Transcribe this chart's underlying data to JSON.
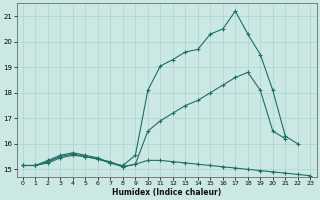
{
  "xlabel": "Humidex (Indice chaleur)",
  "bg_color": "#cce8e4",
  "grid_color": "#b0d8d2",
  "line_color": "#1e6e64",
  "xlim": [
    -0.5,
    23.5
  ],
  "ylim": [
    14.7,
    21.5
  ],
  "yticks": [
    15,
    16,
    17,
    18,
    19,
    20,
    21
  ],
  "xticks": [
    0,
    1,
    2,
    3,
    4,
    5,
    6,
    7,
    8,
    9,
    10,
    11,
    12,
    13,
    14,
    15,
    16,
    17,
    18,
    19,
    20,
    21,
    22,
    23
  ],
  "line1_x": [
    0,
    1,
    2,
    3,
    4,
    5,
    6,
    7,
    8,
    9,
    10,
    11,
    12,
    13,
    14,
    15,
    16,
    17,
    18,
    19,
    20,
    21,
    22
  ],
  "line1_y": [
    15.15,
    15.15,
    15.35,
    15.55,
    15.65,
    15.55,
    15.45,
    15.25,
    15.15,
    15.55,
    18.1,
    19.05,
    19.3,
    19.6,
    19.7,
    20.3,
    20.5,
    21.2,
    20.3,
    19.5,
    18.1,
    16.3,
    16.0
  ],
  "line2_x": [
    0,
    1,
    2,
    3,
    4,
    5,
    6,
    7,
    8,
    9,
    10,
    11,
    12,
    13,
    14,
    15,
    16,
    17,
    18,
    19,
    20,
    21,
    22
  ],
  "line2_y": [
    15.15,
    15.15,
    15.3,
    15.5,
    15.6,
    15.5,
    15.4,
    15.3,
    15.1,
    15.2,
    16.5,
    16.9,
    17.2,
    17.5,
    17.7,
    18.0,
    18.3,
    18.6,
    18.8,
    18.1,
    16.5,
    16.2,
    null
  ],
  "line3_x": [
    0,
    1,
    2,
    3,
    4,
    5,
    6,
    7,
    8,
    9,
    10,
    11,
    12,
    13,
    14,
    15,
    16,
    17,
    18,
    19,
    20,
    21,
    22,
    23
  ],
  "line3_y": [
    15.15,
    15.15,
    15.25,
    15.45,
    15.55,
    15.5,
    15.4,
    15.25,
    15.1,
    15.2,
    15.35,
    15.35,
    15.3,
    15.25,
    15.2,
    15.15,
    15.1,
    15.05,
    15.0,
    14.95,
    14.9,
    14.85,
    14.8,
    14.75
  ]
}
